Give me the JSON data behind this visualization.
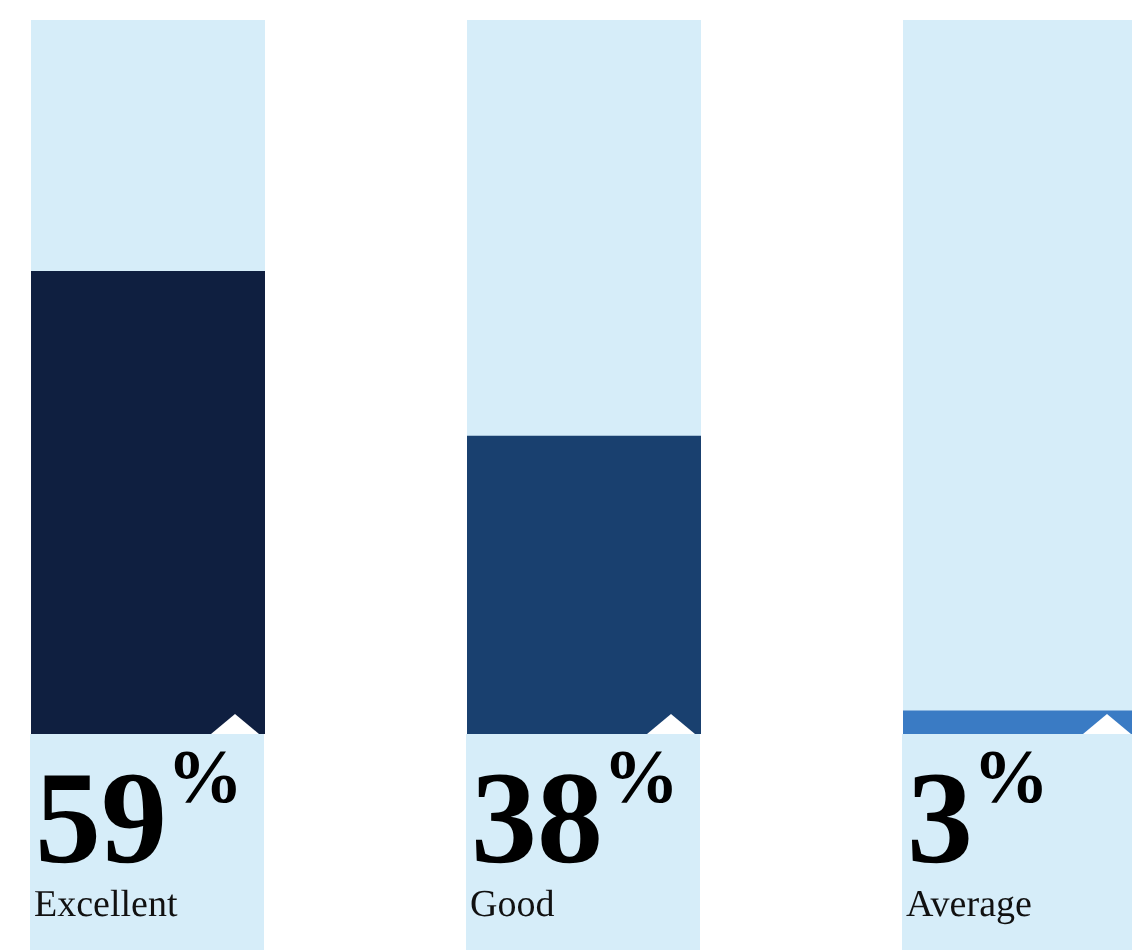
{
  "chart_data": {
    "type": "bar",
    "categories": [
      "Excellent",
      "Good",
      "Average"
    ],
    "values": [
      59,
      38,
      3
    ],
    "colors": [
      "#0f1f40",
      "#19406f",
      "#3a7bc4"
    ],
    "value_labels": [
      "59$^{%}$",
      "38$^{%}$",
      "3$^{%}$"
    ],
    "ylim": [
      0,
      91
    ]
  }
}
